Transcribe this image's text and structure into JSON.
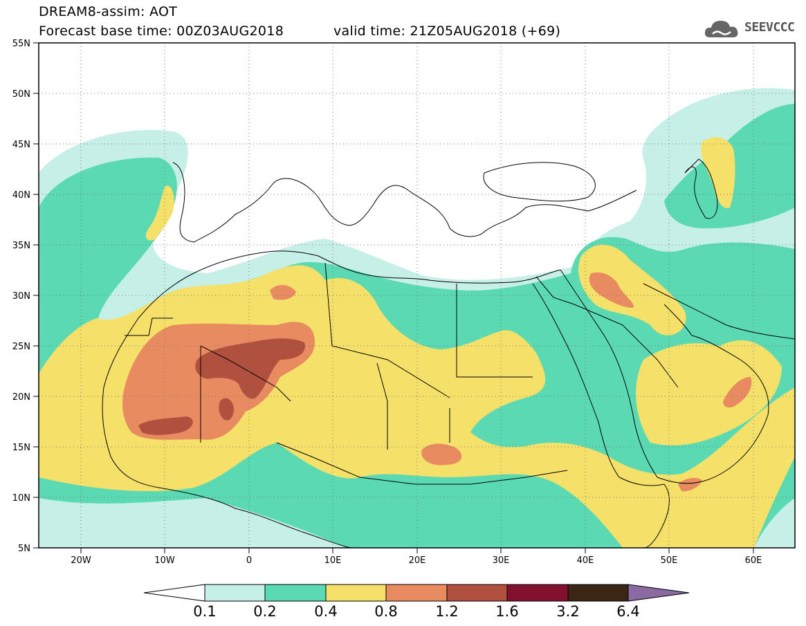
{
  "header": {
    "title": "DREAM8-assim: AOT",
    "base_time": "Forecast base time: 00Z03AUG2018",
    "valid_time": "valid time: 21Z05AUG2018 (+69)"
  },
  "logo": {
    "text": "SEEVCCC",
    "icon": "cloud-icon"
  },
  "map": {
    "variable": "AOT",
    "lat_range": [
      5,
      55
    ],
    "lon_range": [
      -25,
      65
    ],
    "lat_labels": [
      "55N",
      "50N",
      "45N",
      "40N",
      "35N",
      "30N",
      "25N",
      "20N",
      "15N",
      "10N",
      "5N"
    ],
    "lon_labels": [
      "20W",
      "10W",
      "0",
      "10E",
      "20E",
      "30E",
      "40E",
      "50E",
      "60E"
    ],
    "grid": "dotted"
  },
  "colorbar": {
    "labels": [
      "0.1",
      "0.2",
      "0.4",
      "0.8",
      "1.2",
      "1.6",
      "3.2",
      "6.4"
    ],
    "colors": {
      "below": "#ffffff",
      "c0": "#c6efe8",
      "c1": "#5ad9b2",
      "c2": "#f5e06a",
      "c3": "#e98b60",
      "c4": "#b0503f",
      "c5": "#84102f",
      "c6": "#3b2515",
      "above": "#8a6aa0"
    }
  }
}
